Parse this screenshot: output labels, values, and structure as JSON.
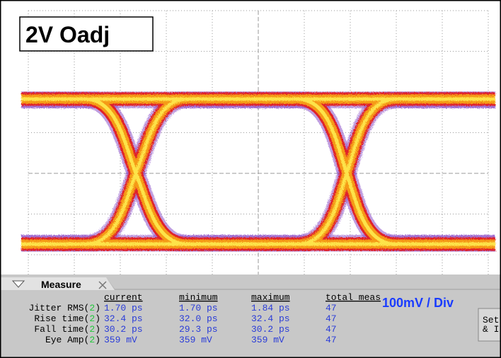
{
  "screen": {
    "title": "2V Oadj",
    "scale_label": "100mV / Div"
  },
  "measure": {
    "tab_label": "Measure",
    "columns": [
      "current",
      "minimum",
      "maximum",
      "total meas"
    ],
    "rows": [
      {
        "label": [
          "Jitter RMS(",
          "2",
          ")"
        ],
        "values": [
          "1.70 ps",
          "1.70 ps",
          "1.84 ps",
          "47"
        ]
      },
      {
        "label": [
          "Rise time(",
          "2",
          ")"
        ],
        "values": [
          "32.4 ps",
          "32.0 ps",
          "32.4 ps",
          "47"
        ]
      },
      {
        "label": [
          "Fall time(",
          "2",
          ")"
        ],
        "values": [
          "30.2 ps",
          "29.3 ps",
          "30.2 ps",
          "47"
        ]
      },
      {
        "label": [
          "Eye Amp(",
          "2",
          ")"
        ],
        "values": [
          "359 mV",
          "359 mV",
          "359 mV",
          "47"
        ]
      }
    ],
    "button": [
      "Set",
      "& I"
    ]
  }
}
